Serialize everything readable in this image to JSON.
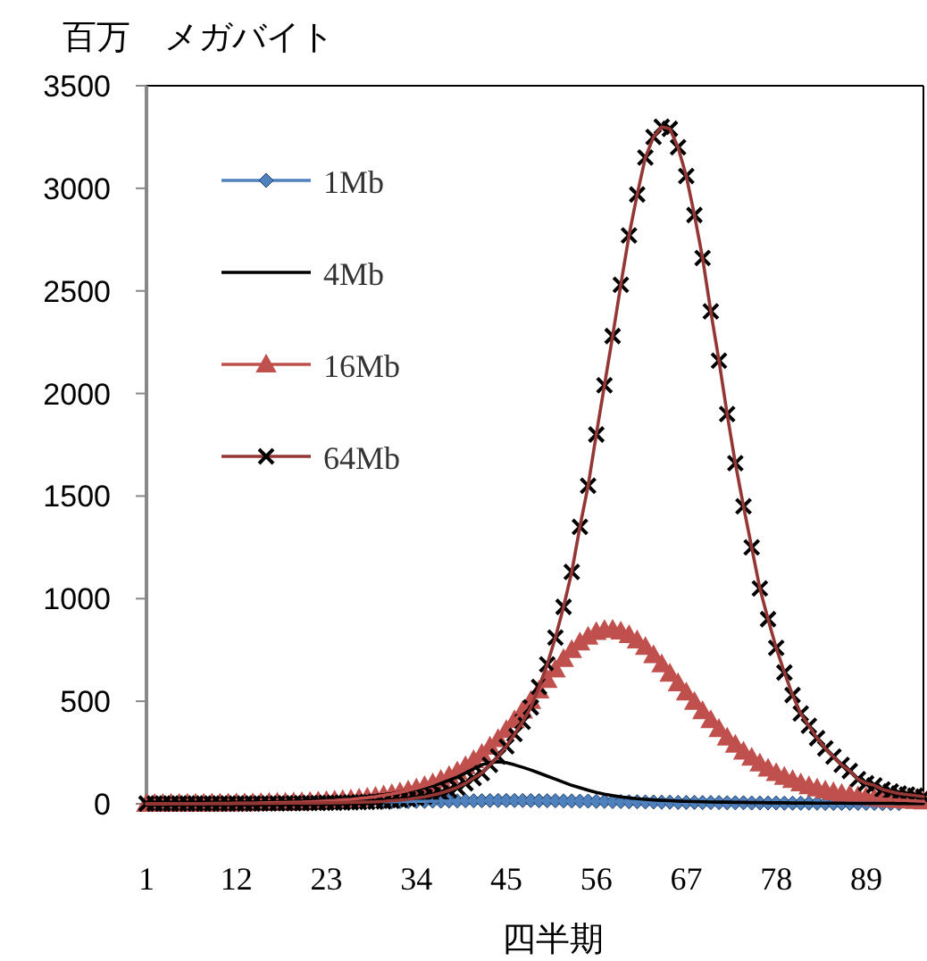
{
  "chart_data": {
    "type": "line",
    "ylabel": "百万　メガバイト",
    "xlabel": "四半期",
    "categories": [
      "1",
      null,
      null,
      null,
      null,
      null,
      null,
      null,
      null,
      null,
      null,
      "12",
      null,
      null,
      null,
      null,
      null,
      null,
      null,
      null,
      null,
      null,
      "23",
      null,
      null,
      null,
      null,
      null,
      null,
      null,
      null,
      null,
      null,
      "34",
      null,
      null,
      null,
      null,
      null,
      null,
      null,
      null,
      null,
      null,
      "45",
      null,
      null,
      null,
      null,
      null,
      null,
      null,
      null,
      null,
      null,
      "56",
      null,
      null,
      null,
      null,
      null,
      null,
      null,
      null,
      null,
      null,
      "67",
      null,
      null,
      null,
      null,
      null,
      null,
      null,
      null,
      null,
      null,
      "78",
      null,
      null,
      null,
      null,
      null,
      null,
      null,
      null,
      null,
      null,
      "89",
      null,
      null,
      null,
      null,
      null,
      null,
      null
    ],
    "ylim": [
      0,
      3500
    ],
    "yticks": [
      0,
      500,
      1000,
      1500,
      2000,
      2500,
      3000,
      3500
    ],
    "grid": false,
    "legend": "top left",
    "series": [
      {
        "name": "1Mb",
        "color": "#4f81bd",
        "marker": "diamond",
        "values": [
          null,
          null,
          null,
          null,
          null,
          null,
          null,
          null,
          null,
          null,
          null,
          null,
          null,
          null,
          null,
          null,
          null,
          null,
          null,
          null,
          null,
          null,
          null,
          null,
          null,
          null,
          null,
          null,
          null,
          10,
          10,
          11,
          11,
          12,
          12,
          13,
          13,
          14,
          14,
          15,
          15,
          15,
          16,
          16,
          16,
          16,
          16,
          16,
          15,
          15,
          15,
          14,
          14,
          13,
          13,
          12,
          12,
          11,
          11,
          10,
          10,
          9,
          9,
          8,
          8,
          7,
          7,
          7,
          6,
          6,
          6,
          5,
          5,
          5,
          4,
          4,
          4,
          4,
          3,
          3,
          3,
          3,
          3,
          2,
          2,
          2,
          2,
          2,
          2,
          2,
          1,
          1,
          1,
          null,
          null,
          null
        ]
      },
      {
        "name": "4Mb",
        "color": "#000000",
        "marker": "none",
        "values": [
          2,
          2,
          2,
          3,
          3,
          3,
          4,
          4,
          5,
          5,
          6,
          6,
          7,
          8,
          9,
          10,
          11,
          12,
          13,
          15,
          17,
          19,
          21,
          23,
          26,
          29,
          32,
          36,
          40,
          45,
          50,
          56,
          63,
          70,
          78,
          88,
          100,
          115,
          130,
          150,
          170,
          190,
          200,
          205,
          200,
          190,
          178,
          165,
          150,
          135,
          120,
          105,
          90,
          78,
          66,
          56,
          47,
          40,
          34,
          29,
          25,
          22,
          19,
          17,
          15,
          13,
          12,
          11,
          10,
          9,
          8,
          8,
          7,
          7,
          6,
          6,
          5,
          5,
          5,
          4,
          4,
          4,
          3,
          3,
          3,
          3,
          2,
          2,
          2,
          2,
          2,
          2,
          1,
          1,
          1,
          1
        ]
      },
      {
        "name": "16Mb",
        "color": "#c0504d",
        "marker": "triangle",
        "values": [
          0,
          0,
          0,
          1,
          1,
          1,
          1,
          1,
          2,
          2,
          2,
          3,
          3,
          3,
          4,
          5,
          6,
          6,
          7,
          8,
          10,
          12,
          14,
          16,
          19,
          22,
          26,
          30,
          35,
          41,
          48,
          56,
          65,
          75,
          87,
          100,
          117,
          136,
          158,
          184,
          213,
          244,
          279,
          316,
          360,
          408,
          455,
          502,
          553,
          604,
          655,
          706,
          750,
          787,
          815,
          838,
          848,
          849,
          840,
          823,
          797,
          765,
          725,
          680,
          635,
          588,
          543,
          497,
          452,
          408,
          365,
          323,
          288,
          255,
          225,
          197,
          172,
          150,
          132,
          116,
          100,
          86,
          75,
          65,
          57,
          49,
          43,
          38,
          33,
          28,
          24,
          21,
          18,
          16,
          14,
          12
        ]
      },
      {
        "name": "64Mb",
        "color": "#943634",
        "marker": "cross",
        "values": [
          1,
          1,
          1,
          1,
          1,
          1,
          1,
          1,
          1,
          1,
          1,
          1,
          1,
          1,
          2,
          2,
          2,
          3,
          3,
          3,
          4,
          4,
          5,
          5,
          6,
          7,
          8,
          9,
          10,
          12,
          15,
          18,
          22,
          28,
          34,
          42,
          52,
          65,
          80,
          100,
          125,
          150,
          190,
          230,
          280,
          340,
          400,
          470,
          570,
          680,
          810,
          960,
          1130,
          1350,
          1550,
          1800,
          2040,
          2280,
          2530,
          2770,
          2970,
          3150,
          3250,
          3300,
          3290,
          3200,
          3060,
          2870,
          2660,
          2400,
          2160,
          1900,
          1660,
          1450,
          1250,
          1050,
          900,
          760,
          640,
          530,
          440,
          380,
          320,
          270,
          230,
          190,
          160,
          120,
          100,
          90,
          70,
          60,
          50,
          45,
          40,
          35
        ]
      }
    ]
  }
}
